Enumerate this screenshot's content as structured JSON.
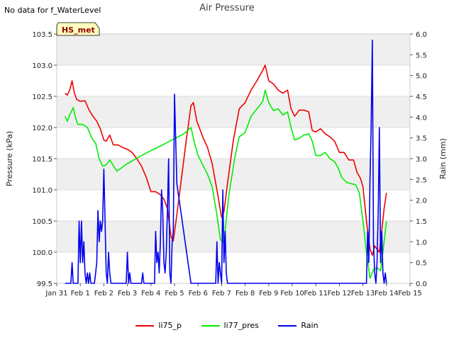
{
  "header": {
    "note": "No data for f_WaterLevel",
    "title": "Air Pressure",
    "station_badge": "HS_met"
  },
  "chart_data": {
    "type": "line",
    "title": "Air Pressure",
    "xlabel": "",
    "ylabel": "Pressure (kPa)",
    "y2label": "Rain (mm)",
    "grid": true,
    "legend_position": "bottom-center",
    "x_unit": "days since Jan 31",
    "xlim": [
      0,
      15
    ],
    "ylim": [
      99.5,
      103.5
    ],
    "y2lim": [
      0.0,
      6.0
    ],
    "x_ticks": [
      {
        "x": 0,
        "label": "Jan 31"
      },
      {
        "x": 1,
        "label": "Feb 1"
      },
      {
        "x": 2,
        "label": "Feb 2"
      },
      {
        "x": 3,
        "label": "Feb 3"
      },
      {
        "x": 4,
        "label": "Feb 4"
      },
      {
        "x": 5,
        "label": "Feb 5"
      },
      {
        "x": 6,
        "label": "Feb 6"
      },
      {
        "x": 7,
        "label": "Feb 7"
      },
      {
        "x": 8,
        "label": "Feb 8"
      },
      {
        "x": 9,
        "label": "Feb 9"
      },
      {
        "x": 10,
        "label": "Feb 10"
      },
      {
        "x": 11,
        "label": "Feb 11"
      },
      {
        "x": 12,
        "label": "Feb 12"
      },
      {
        "x": 13,
        "label": "Feb 13"
      },
      {
        "x": 14,
        "label": "Feb 14"
      },
      {
        "x": 15,
        "label": "Feb 15"
      }
    ],
    "y_ticks": [
      "99.5",
      "100.0",
      "100.5",
      "101.0",
      "101.5",
      "102.0",
      "102.5",
      "103.0",
      "103.5"
    ],
    "y2_ticks": [
      "0.0",
      "0.5",
      "1.0",
      "1.5",
      "2.0",
      "2.5",
      "3.0",
      "3.5",
      "4.0",
      "4.5",
      "5.0",
      "5.5",
      "6.0"
    ],
    "series": [
      {
        "name": "li75_p",
        "axis": "left",
        "color": "#ee0000",
        "points": [
          [
            0.35,
            102.55
          ],
          [
            0.45,
            102.52
          ],
          [
            0.55,
            102.6
          ],
          [
            0.65,
            102.75
          ],
          [
            0.75,
            102.55
          ],
          [
            0.85,
            102.45
          ],
          [
            1.0,
            102.42
          ],
          [
            1.2,
            102.43
          ],
          [
            1.35,
            102.3
          ],
          [
            1.5,
            102.2
          ],
          [
            1.7,
            102.1
          ],
          [
            1.85,
            101.98
          ],
          [
            2.0,
            101.8
          ],
          [
            2.1,
            101.78
          ],
          [
            2.25,
            101.88
          ],
          [
            2.4,
            101.72
          ],
          [
            2.6,
            101.72
          ],
          [
            2.8,
            101.68
          ],
          [
            3.0,
            101.65
          ],
          [
            3.2,
            101.6
          ],
          [
            3.4,
            101.5
          ],
          [
            3.6,
            101.38
          ],
          [
            3.8,
            101.2
          ],
          [
            4.0,
            100.97
          ],
          [
            4.2,
            100.97
          ],
          [
            4.4,
            100.92
          ],
          [
            4.55,
            100.85
          ],
          [
            4.7,
            100.7
          ],
          [
            4.85,
            100.25
          ],
          [
            4.95,
            100.18
          ],
          [
            5.1,
            100.6
          ],
          [
            5.3,
            101.2
          ],
          [
            5.5,
            101.8
          ],
          [
            5.7,
            102.35
          ],
          [
            5.8,
            102.4
          ],
          [
            5.95,
            102.1
          ],
          [
            6.2,
            101.85
          ],
          [
            6.4,
            101.68
          ],
          [
            6.6,
            101.42
          ],
          [
            6.8,
            101.0
          ],
          [
            7.0,
            100.56
          ],
          [
            7.1,
            100.65
          ],
          [
            7.25,
            101.1
          ],
          [
            7.5,
            101.8
          ],
          [
            7.75,
            102.3
          ],
          [
            8.0,
            102.4
          ],
          [
            8.25,
            102.6
          ],
          [
            8.5,
            102.75
          ],
          [
            8.75,
            102.92
          ],
          [
            8.85,
            103.0
          ],
          [
            9.0,
            102.75
          ],
          [
            9.2,
            102.7
          ],
          [
            9.4,
            102.6
          ],
          [
            9.6,
            102.55
          ],
          [
            9.8,
            102.6
          ],
          [
            9.95,
            102.3
          ],
          [
            10.1,
            102.18
          ],
          [
            10.3,
            102.28
          ],
          [
            10.5,
            102.28
          ],
          [
            10.7,
            102.25
          ],
          [
            10.85,
            101.95
          ],
          [
            11.0,
            101.93
          ],
          [
            11.2,
            101.98
          ],
          [
            11.4,
            101.9
          ],
          [
            11.6,
            101.85
          ],
          [
            11.8,
            101.78
          ],
          [
            12.0,
            101.6
          ],
          [
            12.2,
            101.6
          ],
          [
            12.4,
            101.48
          ],
          [
            12.6,
            101.48
          ],
          [
            12.75,
            101.28
          ],
          [
            12.9,
            101.18
          ],
          [
            13.0,
            101.05
          ],
          [
            13.15,
            100.5
          ],
          [
            13.3,
            100.05
          ],
          [
            13.4,
            99.95
          ],
          [
            13.5,
            100.1
          ],
          [
            13.6,
            100.05
          ],
          [
            13.7,
            100.0
          ],
          [
            13.8,
            100.35
          ],
          [
            13.9,
            100.7
          ],
          [
            14.0,
            100.95
          ]
        ]
      },
      {
        "name": "li77_pres",
        "axis": "left",
        "color": "#00ee00",
        "points": [
          [
            0.35,
            102.18
          ],
          [
            0.45,
            102.1
          ],
          [
            0.55,
            102.2
          ],
          [
            0.7,
            102.32
          ],
          [
            0.8,
            102.15
          ],
          [
            0.9,
            102.05
          ],
          [
            1.1,
            102.05
          ],
          [
            1.3,
            102.0
          ],
          [
            1.5,
            101.82
          ],
          [
            1.65,
            101.75
          ],
          [
            1.8,
            101.5
          ],
          [
            1.95,
            101.38
          ],
          [
            2.1,
            101.4
          ],
          [
            2.25,
            101.48
          ],
          [
            2.55,
            101.3
          ],
          [
            3.0,
            101.42
          ],
          [
            3.5,
            101.53
          ],
          [
            4.0,
            101.63
          ],
          [
            4.5,
            101.72
          ],
          [
            5.0,
            101.82
          ],
          [
            5.4,
            101.9
          ],
          [
            5.7,
            102.0
          ],
          [
            5.85,
            101.75
          ],
          [
            6.0,
            101.55
          ],
          [
            6.2,
            101.4
          ],
          [
            6.4,
            101.25
          ],
          [
            6.6,
            101.05
          ],
          [
            6.8,
            100.6
          ],
          [
            6.95,
            100.2
          ],
          [
            7.1,
            100.15
          ],
          [
            7.3,
            100.9
          ],
          [
            7.55,
            101.5
          ],
          [
            7.75,
            101.85
          ],
          [
            8.0,
            101.92
          ],
          [
            8.25,
            102.18
          ],
          [
            8.5,
            102.3
          ],
          [
            8.75,
            102.42
          ],
          [
            8.85,
            102.6
          ],
          [
            9.0,
            102.4
          ],
          [
            9.2,
            102.27
          ],
          [
            9.4,
            102.3
          ],
          [
            9.6,
            102.2
          ],
          [
            9.8,
            102.25
          ],
          [
            9.95,
            102.0
          ],
          [
            10.1,
            101.8
          ],
          [
            10.3,
            101.83
          ],
          [
            10.5,
            101.88
          ],
          [
            10.7,
            101.9
          ],
          [
            10.85,
            101.78
          ],
          [
            11.0,
            101.55
          ],
          [
            11.2,
            101.55
          ],
          [
            11.4,
            101.6
          ],
          [
            11.6,
            101.5
          ],
          [
            11.8,
            101.45
          ],
          [
            11.95,
            101.35
          ],
          [
            12.1,
            101.2
          ],
          [
            12.3,
            101.12
          ],
          [
            12.5,
            101.1
          ],
          [
            12.7,
            101.08
          ],
          [
            12.85,
            100.95
          ],
          [
            13.0,
            100.5
          ],
          [
            13.15,
            100.0
          ],
          [
            13.3,
            99.58
          ],
          [
            13.45,
            99.72
          ],
          [
            13.6,
            99.75
          ],
          [
            13.75,
            99.7
          ],
          [
            13.85,
            100.0
          ],
          [
            14.0,
            100.5
          ]
        ]
      },
      {
        "name": "Rain",
        "axis": "right",
        "color": "#0000ee",
        "points": [
          [
            0.35,
            0
          ],
          [
            0.6,
            0
          ],
          [
            0.65,
            0.5
          ],
          [
            0.7,
            0
          ],
          [
            0.9,
            0
          ],
          [
            0.95,
            1.5
          ],
          [
            1.0,
            0.5
          ],
          [
            1.05,
            1.5
          ],
          [
            1.1,
            0.5
          ],
          [
            1.15,
            1.0
          ],
          [
            1.2,
            0.25
          ],
          [
            1.25,
            0
          ],
          [
            1.3,
            0.25
          ],
          [
            1.35,
            0
          ],
          [
            1.4,
            0.25
          ],
          [
            1.45,
            0
          ],
          [
            1.6,
            0
          ],
          [
            1.65,
            0.25
          ],
          [
            1.7,
            0.5
          ],
          [
            1.75,
            1.75
          ],
          [
            1.8,
            1.0
          ],
          [
            1.85,
            1.5
          ],
          [
            1.9,
            1.25
          ],
          [
            1.95,
            1.5
          ],
          [
            2.0,
            2.75
          ],
          [
            2.05,
            1.5
          ],
          [
            2.1,
            0.25
          ],
          [
            2.15,
            0
          ],
          [
            2.2,
            0.75
          ],
          [
            2.25,
            0.25
          ],
          [
            2.3,
            0
          ],
          [
            2.95,
            0
          ],
          [
            3.0,
            0.75
          ],
          [
            3.05,
            0
          ],
          [
            3.1,
            0.25
          ],
          [
            3.15,
            0
          ],
          [
            3.6,
            0
          ],
          [
            3.65,
            0.25
          ],
          [
            3.7,
            0
          ],
          [
            4.15,
            0
          ],
          [
            4.2,
            1.25
          ],
          [
            4.25,
            0.5
          ],
          [
            4.3,
            0.75
          ],
          [
            4.35,
            0.25
          ],
          [
            4.4,
            1.0
          ],
          [
            4.45,
            2.25
          ],
          [
            4.5,
            1.75
          ],
          [
            4.55,
            0.5
          ],
          [
            4.6,
            0.25
          ],
          [
            4.65,
            0.75
          ],
          [
            4.7,
            1.75
          ],
          [
            4.75,
            3.0
          ],
          [
            4.8,
            0.25
          ],
          [
            4.85,
            0
          ],
          [
            4.9,
            1.0
          ],
          [
            4.95,
            1.25
          ],
          [
            5.0,
            4.55
          ],
          [
            5.1,
            2.4
          ],
          [
            5.3,
            1.6
          ],
          [
            5.5,
            0.8
          ],
          [
            5.7,
            0
          ],
          [
            6.75,
            0
          ],
          [
            6.8,
            1.0
          ],
          [
            6.85,
            0
          ],
          [
            6.9,
            0.5
          ],
          [
            6.95,
            0.25
          ],
          [
            7.0,
            0
          ],
          [
            7.05,
            2.25
          ],
          [
            7.1,
            0.5
          ],
          [
            7.15,
            1.25
          ],
          [
            7.2,
            0.25
          ],
          [
            7.25,
            0
          ],
          [
            13.15,
            0
          ],
          [
            13.2,
            1.25
          ],
          [
            13.25,
            0.5
          ],
          [
            13.3,
            2.5
          ],
          [
            13.35,
            3.75
          ],
          [
            13.4,
            5.85
          ],
          [
            13.45,
            1.0
          ],
          [
            13.5,
            0.25
          ],
          [
            13.55,
            0
          ],
          [
            13.6,
            0.5
          ],
          [
            13.65,
            1.75
          ],
          [
            13.7,
            3.75
          ],
          [
            13.75,
            0.5
          ],
          [
            13.8,
            1.25
          ],
          [
            13.85,
            0.25
          ],
          [
            13.9,
            0
          ],
          [
            13.95,
            0.25
          ],
          [
            14.0,
            0
          ]
        ]
      }
    ]
  }
}
